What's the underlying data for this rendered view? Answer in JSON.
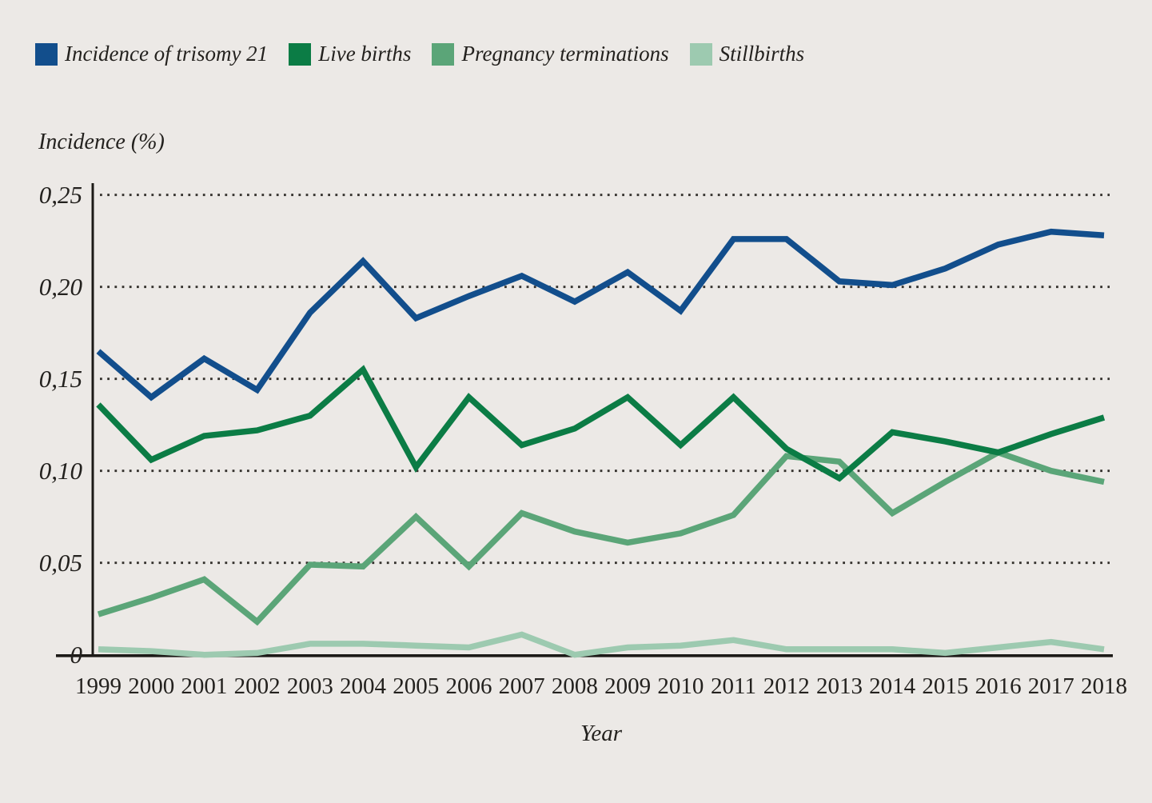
{
  "style": {
    "background_color": "#ECE9E6",
    "text_color": "#23211E",
    "axis_color": "#1C1A17",
    "grid_color": "#33302C"
  },
  "chart_data": {
    "type": "line",
    "title": "",
    "ylabel": "Incidence (%)",
    "xlabel": "Year",
    "x": [
      1999,
      2000,
      2001,
      2002,
      2003,
      2004,
      2005,
      2006,
      2007,
      2008,
      2009,
      2010,
      2011,
      2012,
      2013,
      2014,
      2015,
      2016,
      2017,
      2018
    ],
    "ylim": [
      0,
      0.25
    ],
    "grid": "horizontal-dotted",
    "legend_position": "top-left",
    "yticks": [
      {
        "value": 0,
        "label": "0"
      },
      {
        "value": 0.05,
        "label": "0,05"
      },
      {
        "value": 0.1,
        "label": "0,10"
      },
      {
        "value": 0.15,
        "label": "0,15"
      },
      {
        "value": 0.2,
        "label": "0,20"
      },
      {
        "value": 0.25,
        "label": "0,25"
      }
    ],
    "series": [
      {
        "name": "Incidence of trisomy 21",
        "color": "#124E8C",
        "values": [
          0.165,
          0.14,
          0.161,
          0.144,
          0.186,
          0.214,
          0.183,
          0.195,
          0.206,
          0.192,
          0.208,
          0.187,
          0.226,
          0.226,
          0.203,
          0.201,
          0.21,
          0.223,
          0.23,
          0.228
        ]
      },
      {
        "name": "Live births",
        "color": "#0B7C45",
        "values": [
          0.136,
          0.106,
          0.119,
          0.122,
          0.13,
          0.155,
          0.102,
          0.14,
          0.114,
          0.123,
          0.14,
          0.114,
          0.14,
          0.112,
          0.096,
          0.121,
          0.116,
          0.11,
          0.12,
          0.129
        ]
      },
      {
        "name": "Pregnancy terminations",
        "color": "#5BA578",
        "values": [
          0.022,
          0.031,
          0.041,
          0.018,
          0.049,
          0.048,
          0.075,
          0.048,
          0.077,
          0.067,
          0.061,
          0.066,
          0.076,
          0.108,
          0.105,
          0.077,
          0.094,
          0.11,
          0.1,
          0.094
        ]
      },
      {
        "name": "Stillbirths",
        "color": "#9DCAB0",
        "values": [
          0.003,
          0.002,
          0.0,
          0.001,
          0.006,
          0.006,
          0.005,
          0.004,
          0.011,
          0.0,
          0.004,
          0.005,
          0.008,
          0.003,
          0.003,
          0.003,
          0.001,
          0.004,
          0.007,
          0.003
        ]
      }
    ]
  }
}
